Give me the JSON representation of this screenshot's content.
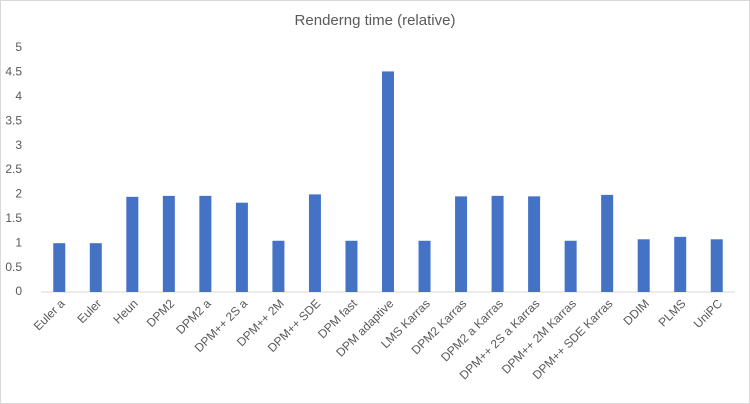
{
  "chart_data": {
    "type": "bar",
    "title": "Renderng time (relative)",
    "categories": [
      "Euler a",
      "Euler",
      "Heun",
      "DPM2",
      "DPM2 a",
      "DPM++ 2S a",
      "DPM++ 2M",
      "DPM++ SDE",
      "DPM fast",
      "DPM adaptive",
      "LMS Karras",
      "DPM2 Karras",
      "DPM2 a Karras",
      "DPM++ 2S a Karras",
      "DPM++ 2M Karras",
      "DPM++ SDE Karras",
      "DDIM",
      "PLMS",
      "UniPC"
    ],
    "values": [
      1.0,
      1.0,
      1.95,
      1.97,
      1.97,
      1.83,
      1.05,
      2.0,
      1.05,
      4.52,
      1.05,
      1.96,
      1.97,
      1.96,
      1.05,
      1.99,
      1.08,
      1.13,
      1.08
    ],
    "color": "#4472c4",
    "ylim": [
      0,
      5
    ],
    "yticks": [
      0,
      0.5,
      1,
      1.5,
      2,
      2.5,
      3,
      3.5,
      4,
      4.5,
      5
    ],
    "grid": false
  }
}
